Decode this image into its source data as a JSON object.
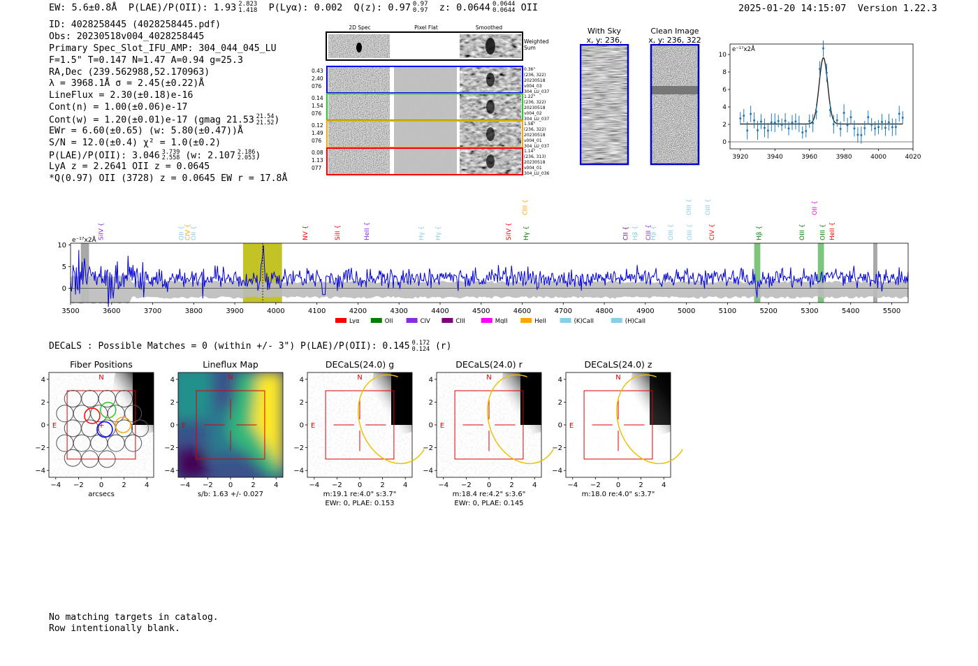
{
  "header": {
    "ew": "EW: 5.6±0.8Å",
    "plae_label": "P(LAE)/P(OII): 1.93",
    "plae_hi": "2.823",
    "plae_lo": "1.418",
    "plya": "P(Lyα): 0.002",
    "qz_label": "Q(z): 0.97",
    "qz_hi": "0.97",
    "qz_lo": "0.97",
    "z_label": "z: 0.0644",
    "z_hi": "0.0644",
    "z_lo": "0.0644",
    "z_line": "OII",
    "timestamp": "2025-01-20 14:15:07",
    "version": "Version 1.22.3"
  },
  "info": {
    "id": "ID: 4028258445 (4028258445.pdf)",
    "obs": "Obs: 20230518v004_4028258445",
    "primary": "Primary Spec_Slot_IFU_AMP: 304_044_045_LU",
    "fiber": "F=1.5\"  T=0.147  N=1.47  A=0.94  g=25.3",
    "radec": "RA,Dec (239.562988,52.170963)",
    "lambda": "λ = 3968.1Å   σ = 2.45(±0.22)Å",
    "lineflux": "LineFlux = 2.30(±0.18)e-16",
    "contn": "Cont(n) = 1.00(±0.06)e-17",
    "contw": "Cont(w) = 1.20(±0.01)e-17 (gmag 21.53",
    "contw_hi": "21.54",
    "contw_lo": "21.52",
    "contw_end": ")",
    "ewr": "EWr = 6.60(±0.65) (w: 5.80(±0.47))Å",
    "sn": "S/N = 12.0(±0.4)  χ² = 1.0(±0.2)",
    "plae2": "P(LAE)/P(OII): 3.046",
    "plae2_hi": "3.739",
    "plae2_lo": "2.558",
    "plae2_w": "(w: 2.107",
    "plae2_w_hi": "2.186",
    "plae2_w_lo": "2.053",
    "plae2_end": ")",
    "lya": "LyA z = 2.2641   OII z = 0.0645",
    "q": "*Q(0.97) OII (3728) z = 0.0645  EW r = 17.8Å"
  },
  "cutouts": {
    "col_2d": "2D Spec",
    "col_flat": "Pixel Flat",
    "col_smooth": "Smoothed",
    "weighted_1": "Weighted",
    "weighted_2": "Sum",
    "rows": [
      {
        "left": [
          "0.43",
          "2.40",
          "076"
        ],
        "right": [
          "0.36\"",
          "(236, 322)",
          "20230518",
          "v004_03",
          "304_LU_037"
        ],
        "color": "#0000ff"
      },
      {
        "left": [
          "0.14",
          "1.54",
          "076"
        ],
        "right": [
          "1.22\"",
          "(236, 322)",
          "20230518",
          "v004_02",
          "304_LU_037"
        ],
        "color": "#22cc22"
      },
      {
        "left": [
          "0.12",
          "1.49",
          "076"
        ],
        "right": [
          "1.58\"",
          "(236, 322)",
          "20230518",
          "v004_01",
          "304_LU_037"
        ],
        "color": "#ffa500"
      },
      {
        "left": [
          "0.08",
          "1.13",
          "077"
        ],
        "right": [
          "1.14\"",
          "(236, 313)",
          "20230518",
          "v004_01",
          "304_LU_036"
        ],
        "color": "#ff0000"
      }
    ]
  },
  "sky": {
    "with_sky_title": "With Sky",
    "with_sky_xy": "x, y: 236, 322",
    "clean_title": "Clean Image",
    "clean_xy": "x, y: 236, 322"
  },
  "fit_panel": {
    "unit": "e⁻¹⁷x2Å",
    "xticks": [
      "3920",
      "3940",
      "3960",
      "3980",
      "4000",
      "4020"
    ],
    "yticks": [
      "0",
      "2",
      "4",
      "6",
      "8",
      "10"
    ]
  },
  "full_spec": {
    "unit": "e⁻¹⁷x2Å",
    "xticks": [
      "3500",
      "3600",
      "3700",
      "3800",
      "3900",
      "4000",
      "4100",
      "4200",
      "4300",
      "4400",
      "4500",
      "4600",
      "4700",
      "4800",
      "4900",
      "5000",
      "5100",
      "5200",
      "5300",
      "5400",
      "5500"
    ],
    "yticks": [
      "0",
      "5",
      "10"
    ],
    "legend": [
      {
        "label": "Lyα",
        "color": "#ff0000"
      },
      {
        "label": "OII",
        "color": "#008000"
      },
      {
        "label": "CIV",
        "color": "#8a2be2"
      },
      {
        "label": "CIII",
        "color": "#800080"
      },
      {
        "label": "MgII",
        "color": "#ff00ff"
      },
      {
        "label": "HeII",
        "color": "#ffa500"
      },
      {
        "label": "(K)CaII",
        "color": "#87ceeb"
      },
      {
        "label": "(H)CaII",
        "color": "#87ceeb"
      }
    ],
    "lines": [
      {
        "name": "SiIV",
        "wave": 3572,
        "color": "#8a2be2"
      },
      {
        "name": "OII",
        "wave": 3768,
        "color": "#87ceeb"
      },
      {
        "name": "CIV",
        "wave": 3783,
        "color": "#ffa500"
      },
      {
        "name": "OII",
        "wave": 3798,
        "color": "#87ceeb"
      },
      {
        "name": "NV",
        "wave": 4070,
        "color": "#ff0000"
      },
      {
        "name": "SiII",
        "wave": 4148,
        "color": "#ff0000"
      },
      {
        "name": "HeII",
        "wave": 4220,
        "color": "#8a2be2"
      },
      {
        "name": "Hγ",
        "wave": 4352,
        "color": "#87ceeb"
      },
      {
        "name": "Hγ",
        "wave": 4393,
        "color": "#87ceeb"
      },
      {
        "name": "SiIV",
        "wave": 4565,
        "color": "#ff0000"
      },
      {
        "name": "CIII",
        "wave": 4605,
        "color": "#ffa500"
      },
      {
        "name": "Hγ",
        "wave": 4608,
        "color": "#008000"
      },
      {
        "name": "CII",
        "wave": 4850,
        "color": "#800080"
      },
      {
        "name": "Hβ",
        "wave": 4873,
        "color": "#87ceeb"
      },
      {
        "name": "CIII",
        "wave": 4905,
        "color": "#8a2be2"
      },
      {
        "name": "Hβ",
        "wave": 4917,
        "color": "#87ceeb"
      },
      {
        "name": "OIII",
        "wave": 4960,
        "color": "#87ceeb"
      },
      {
        "name": "OIII",
        "wave": 5004,
        "color": "#87ceeb"
      },
      {
        "name": "OIII",
        "wave": 5006,
        "color": "#87ceeb"
      },
      {
        "name": "CIV",
        "wave": 5060,
        "color": "#ff0000"
      },
      {
        "name": "OIII",
        "wave": 5050,
        "color": "#87ceeb"
      },
      {
        "name": "Hβ",
        "wave": 5175,
        "color": "#008000"
      },
      {
        "name": "OIII",
        "wave": 5280,
        "color": "#008000"
      },
      {
        "name": "OII",
        "wave": 5310,
        "color": "#ff00ff"
      },
      {
        "name": "OIII",
        "wave": 5330,
        "color": "#008000"
      },
      {
        "name": "HeII",
        "wave": 5353,
        "color": "#ff0000"
      }
    ]
  },
  "decals": {
    "header": "DECaLS : Possible Matches = 0 (within +/- 3\")  P(LAE)/P(OII): 0.145",
    "hi": "0.172",
    "lo": "0.124",
    "band": "(r)",
    "panels": [
      {
        "title": "Fiber Positions",
        "caption1": "arcsecs",
        "caption2": ""
      },
      {
        "title": "Lineflux Map",
        "caption1": "s/b: 1.63 +/- 0.027",
        "caption2": ""
      },
      {
        "title": "DECaLS(24.0) g",
        "caption1": "m:19.1  re:4.0\"  s:3.7\"",
        "caption2": "EWr: 0, PLAE: 0.153"
      },
      {
        "title": "DECaLS(24.0) r",
        "caption1": "m:18.4  re:4.2\"  s:3.6\"",
        "caption2": "EWr: 0, PLAE: 0.145"
      },
      {
        "title": "DECaLS(24.0) z",
        "caption1": "m:18.0  re:4.0\"  s:3.7\"",
        "caption2": ""
      }
    ],
    "ticks": [
      "−4",
      "−2",
      "0",
      "2",
      "4"
    ],
    "north": "N",
    "east": "E"
  },
  "footer": {
    "line1": "No matching targets in catalog.",
    "line2": "Row intentionally blank."
  }
}
